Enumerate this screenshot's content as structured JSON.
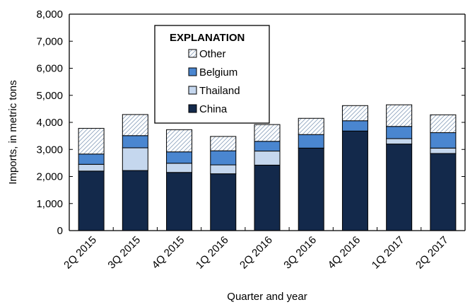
{
  "chart_data": {
    "type": "bar",
    "stacked": true,
    "xlabel": "Quarter and year",
    "ylabel": "Imports, in metric tons",
    "ylim": [
      0,
      8000
    ],
    "yticks": [
      "0",
      "1,000",
      "2,000",
      "3,000",
      "4,000",
      "5,000",
      "6,000",
      "7,000",
      "8,000"
    ],
    "categories": [
      "2Q 2015",
      "3Q 2015",
      "4Q 2015",
      "1Q 2016",
      "2Q 2016",
      "3Q 2016",
      "4Q 2016",
      "1Q 2017",
      "2Q 2017"
    ],
    "legend": {
      "title": "EXPLANATION",
      "placement": "top-left inside plot"
    },
    "series": [
      {
        "name": "China",
        "color": "#13294b",
        "pattern": "solid",
        "values": [
          2200,
          2220,
          2150,
          2100,
          2420,
          3050,
          3680,
          3200,
          2850
        ]
      },
      {
        "name": "Thailand",
        "color": "#c5d7ee",
        "pattern": "solid",
        "values": [
          250,
          840,
          340,
          330,
          520,
          0,
          0,
          200,
          200
        ]
      },
      {
        "name": "Belgium",
        "color": "#4a86d0",
        "pattern": "solid",
        "values": [
          380,
          450,
          420,
          520,
          360,
          500,
          380,
          450,
          570
        ]
      },
      {
        "name": "Other",
        "color": "#ffffff",
        "pattern": "diagonal-hatch",
        "values": [
          950,
          780,
          820,
          530,
          620,
          600,
          560,
          800,
          660
        ]
      }
    ],
    "legend_order": [
      "Other",
      "Belgium",
      "Thailand",
      "China"
    ],
    "grid": false
  }
}
